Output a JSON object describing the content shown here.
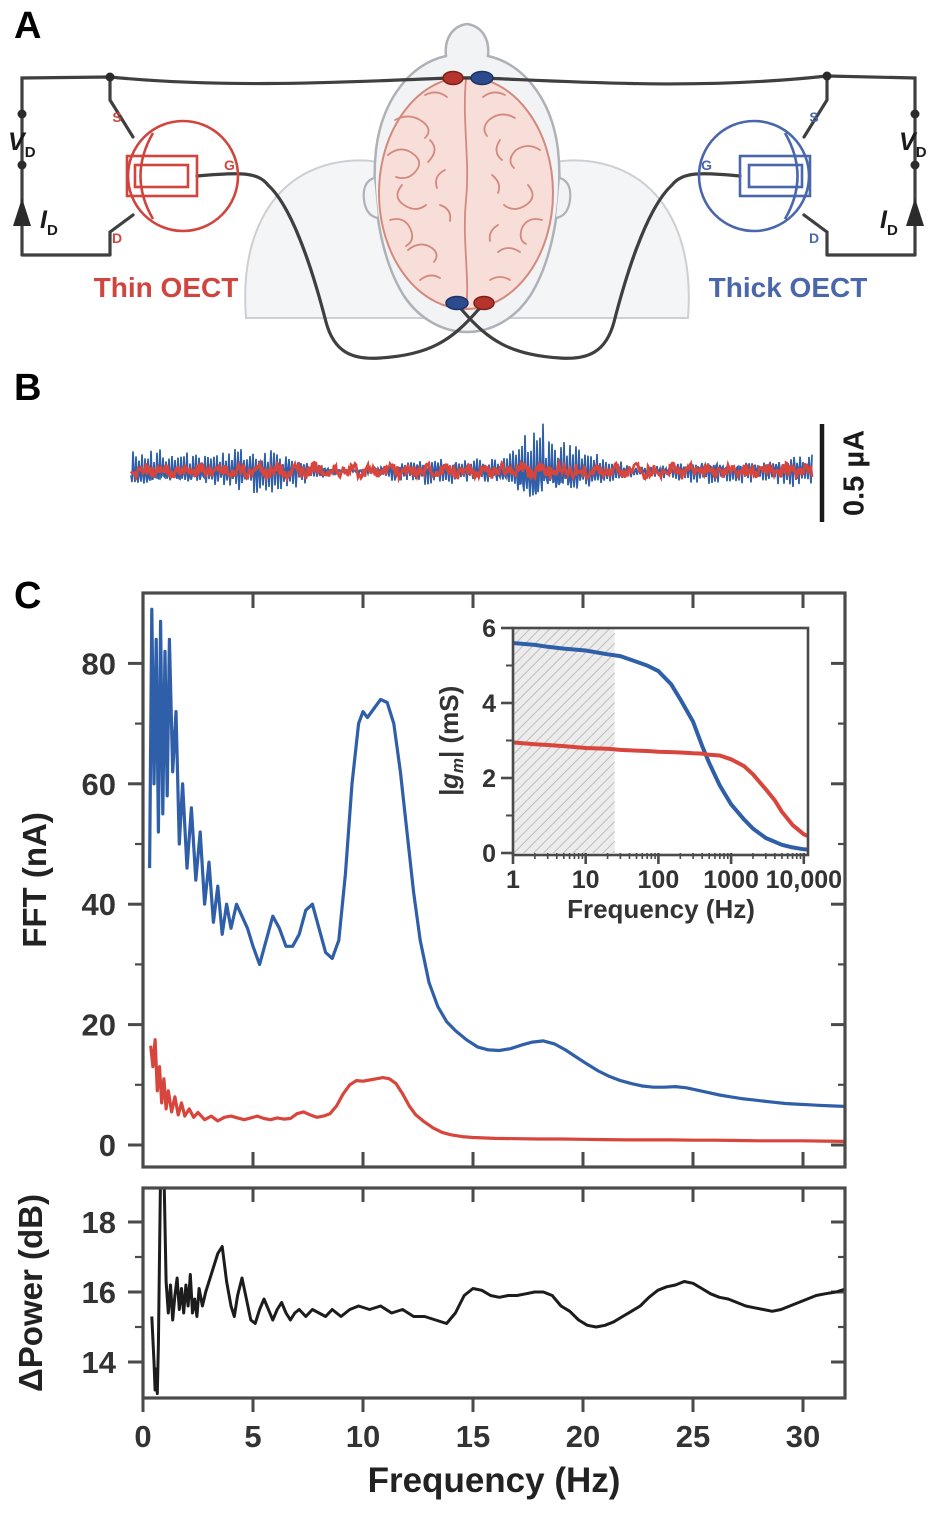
{
  "panel_a": {
    "label": "A",
    "v_symbol": "V",
    "v_sub": "D",
    "i_symbol": "I",
    "i_sub": "D",
    "source": "S",
    "gate": "G",
    "drain": "D",
    "thin_label": "Thin OECT",
    "thin_color": "#d0453e",
    "thick_label": "Thick OECT",
    "thick_color": "#4a67ab",
    "wire_color": "#3f3f3f",
    "electrode_red": "#b5342c",
    "electrode_blue": "#2c4b8e"
  },
  "panel_b": {
    "label": "B"
  },
  "panel_c": {
    "label": "C"
  },
  "chart_data": [
    {
      "id": "fft_spectrum",
      "type": "line",
      "xlabel": "Frequency (Hz)",
      "ylabel": "FFT (nA)",
      "xlim": [
        0,
        32
      ],
      "ylim": [
        -4,
        92
      ],
      "xticks": [
        5,
        10,
        15,
        20,
        25,
        30
      ],
      "yticks": [
        0,
        20,
        40,
        60,
        80
      ],
      "yticks_minor": [
        10,
        30,
        50,
        70
      ],
      "grid": false,
      "legend": "none",
      "series": [
        {
          "name": "Thick OECT",
          "color": "#2e5fa8",
          "x": [
            0.3,
            0.4,
            0.5,
            0.6,
            0.7,
            0.8,
            0.9,
            1.0,
            1.1,
            1.2,
            1.35,
            1.5,
            1.65,
            1.8,
            2.0,
            2.2,
            2.4,
            2.6,
            2.8,
            3.0,
            3.2,
            3.4,
            3.6,
            3.8,
            4.0,
            4.25,
            4.5,
            4.75,
            5.0,
            5.3,
            5.6,
            5.9,
            6.2,
            6.5,
            6.8,
            7.1,
            7.4,
            7.7,
            8.0,
            8.3,
            8.6,
            8.9,
            9.2,
            9.5,
            9.8,
            10.0,
            10.2,
            10.5,
            10.8,
            11.1,
            11.4,
            11.7,
            12.0,
            12.3,
            12.6,
            13.0,
            13.4,
            13.8,
            14.2,
            14.7,
            15.2,
            15.7,
            16.2,
            16.7,
            17.2,
            17.7,
            18.2,
            18.7,
            19.2,
            19.7,
            20.2,
            20.7,
            21.2,
            21.7,
            22.2,
            22.7,
            23.2,
            23.7,
            24.2,
            24.7,
            25.2,
            25.7,
            26.2,
            26.7,
            27.2,
            27.7,
            28.2,
            28.7,
            29.2,
            29.7,
            30.2,
            30.7,
            31.3,
            32.0
          ],
          "y": [
            46,
            89,
            60,
            84,
            52,
            87,
            55,
            82,
            58,
            84,
            62,
            72,
            50,
            60,
            46,
            56,
            44,
            52,
            40,
            47,
            37,
            43,
            35,
            40,
            36,
            40,
            38,
            36,
            33,
            30,
            34,
            38,
            36,
            33,
            33,
            35,
            39,
            40,
            36,
            32,
            31,
            34,
            45,
            60,
            70,
            72,
            71,
            72.5,
            74,
            73.5,
            70,
            62,
            52,
            42,
            34,
            27,
            23,
            20.5,
            19,
            17.5,
            16.3,
            15.8,
            15.7,
            16.0,
            16.6,
            17.1,
            17.3,
            16.8,
            15.8,
            14.6,
            13.4,
            12.3,
            11.4,
            10.7,
            10.2,
            9.8,
            9.6,
            9.6,
            9.7,
            9.5,
            9.1,
            8.7,
            8.3,
            8.0,
            7.7,
            7.5,
            7.3,
            7.1,
            6.9,
            6.8,
            6.7,
            6.6,
            6.5,
            6.4
          ]
        },
        {
          "name": "Thin OECT",
          "color": "#d8453c",
          "x": [
            0.35,
            0.45,
            0.55,
            0.65,
            0.75,
            0.85,
            0.95,
            1.05,
            1.15,
            1.3,
            1.45,
            1.6,
            1.75,
            1.9,
            2.1,
            2.3,
            2.5,
            2.8,
            3.1,
            3.4,
            3.7,
            4.0,
            4.3,
            4.6,
            4.9,
            5.2,
            5.5,
            5.8,
            6.1,
            6.4,
            6.7,
            7.0,
            7.3,
            7.6,
            7.9,
            8.2,
            8.5,
            8.8,
            9.1,
            9.4,
            9.7,
            10.0,
            10.3,
            10.6,
            10.9,
            11.2,
            11.5,
            11.8,
            12.1,
            12.4,
            12.8,
            13.2,
            13.6,
            14.0,
            14.5,
            15.0,
            16.0,
            17.0,
            18.0,
            19.0,
            20.0,
            21.0,
            22.0,
            23.0,
            24.0,
            25.0,
            26.0,
            27.0,
            28.0,
            29.0,
            30.0,
            31.0,
            32.0
          ],
          "y": [
            16.5,
            13.0,
            17.5,
            9.0,
            13.0,
            7.0,
            11.0,
            6.0,
            9.0,
            5.5,
            8.0,
            5.0,
            7.0,
            4.8,
            6.0,
            4.6,
            5.4,
            4.2,
            4.8,
            4.0,
            4.6,
            4.8,
            4.5,
            4.2,
            4.5,
            4.8,
            4.4,
            4.2,
            4.5,
            4.3,
            4.4,
            5.2,
            5.5,
            5.0,
            4.6,
            4.8,
            5.2,
            6.5,
            8.5,
            10.0,
            10.7,
            10.6,
            10.8,
            11.0,
            11.2,
            11.0,
            10.2,
            8.5,
            6.5,
            5.0,
            3.8,
            2.8,
            2.1,
            1.7,
            1.4,
            1.25,
            1.1,
            1.05,
            1.0,
            1.0,
            0.95,
            0.9,
            0.85,
            0.85,
            0.85,
            0.8,
            0.8,
            0.75,
            0.7,
            0.7,
            0.7,
            0.65,
            0.6
          ]
        }
      ]
    },
    {
      "id": "gm_bandwidth",
      "type": "line",
      "xscale": "log",
      "xlabel": "Frequency (Hz)",
      "ylabel_prefix": "|g",
      "ylabel_sub": "m",
      "ylabel_suffix": "| (mS)",
      "xlim": [
        1,
        15000
      ],
      "ylim": [
        0,
        6
      ],
      "xticks": [
        1,
        10,
        100,
        1000,
        10000
      ],
      "xtick_labels": [
        "1",
        "10",
        "100",
        "1000",
        "10,000"
      ],
      "yticks": [
        0,
        2,
        4,
        6
      ],
      "yticks_minor": [
        1,
        3,
        5
      ],
      "shaded_band_hz": [
        1,
        25
      ],
      "series": [
        {
          "name": "Thick OECT",
          "color": "#2e5fa8",
          "x": [
            1,
            2,
            3,
            5,
            10,
            20,
            30,
            50,
            70,
            100,
            150,
            200,
            300,
            400,
            500,
            700,
            1000,
            1500,
            2000,
            3000,
            5000,
            7000,
            10000,
            15000
          ],
          "y": [
            5.6,
            5.55,
            5.5,
            5.45,
            5.4,
            5.3,
            5.25,
            5.1,
            5.0,
            4.85,
            4.5,
            4.1,
            3.5,
            2.85,
            2.4,
            1.8,
            1.3,
            0.9,
            0.65,
            0.4,
            0.22,
            0.15,
            0.1,
            0.08
          ]
        },
        {
          "name": "Thin OECT",
          "color": "#d8453c",
          "x": [
            1,
            2,
            3,
            5,
            10,
            20,
            30,
            50,
            70,
            100,
            150,
            200,
            300,
            400,
            500,
            700,
            1000,
            1500,
            2000,
            3000,
            4000,
            5000,
            7000,
            10000,
            15000
          ],
          "y": [
            2.95,
            2.9,
            2.88,
            2.85,
            2.8,
            2.78,
            2.75,
            2.73,
            2.72,
            2.7,
            2.69,
            2.68,
            2.66,
            2.65,
            2.62,
            2.6,
            2.5,
            2.32,
            2.1,
            1.7,
            1.4,
            1.1,
            0.75,
            0.5,
            0.35
          ]
        }
      ]
    },
    {
      "id": "delta_power",
      "type": "line",
      "xlabel": "Frequency (Hz)",
      "ylabel": "ΔPower (dB)",
      "xlim": [
        0,
        32
      ],
      "ylim": [
        13,
        19
      ],
      "xticks": [
        0,
        5,
        10,
        15,
        20,
        25,
        30
      ],
      "yticks": [
        14,
        16,
        18
      ],
      "yticks_minor": [
        15,
        17
      ],
      "series": [
        {
          "name": "ΔPower",
          "color": "#1c1c1c",
          "x": [
            0.4,
            0.5,
            0.55,
            0.6,
            0.65,
            0.7,
            0.8,
            0.95,
            1.05,
            1.15,
            1.25,
            1.35,
            1.45,
            1.55,
            1.65,
            1.75,
            1.85,
            1.95,
            2.05,
            2.15,
            2.25,
            2.35,
            2.45,
            2.55,
            2.7,
            2.85,
            3.0,
            3.2,
            3.4,
            3.6,
            3.8,
            4.0,
            4.15,
            4.3,
            4.5,
            4.7,
            4.9,
            5.1,
            5.3,
            5.5,
            5.7,
            5.9,
            6.1,
            6.3,
            6.5,
            6.7,
            6.9,
            7.1,
            7.4,
            7.7,
            8.0,
            8.3,
            8.6,
            9.0,
            9.4,
            9.8,
            10.3,
            10.8,
            11.3,
            11.8,
            12.3,
            12.8,
            13.3,
            13.8,
            14.2,
            14.6,
            15.0,
            15.4,
            15.8,
            16.2,
            16.6,
            17.0,
            17.4,
            17.8,
            18.2,
            18.6,
            19.0,
            19.4,
            19.8,
            20.2,
            20.6,
            21.0,
            21.4,
            21.8,
            22.2,
            22.6,
            23.0,
            23.4,
            23.8,
            24.2,
            24.6,
            25.0,
            25.4,
            25.8,
            26.2,
            26.6,
            27.0,
            27.4,
            27.8,
            28.2,
            28.6,
            29.0,
            29.4,
            29.8,
            30.2,
            30.6,
            31.0,
            31.5,
            32.0
          ],
          "y": [
            15.3,
            14.0,
            13.2,
            13.8,
            13.1,
            14.5,
            19.5,
            19.5,
            16.3,
            15.4,
            16.2,
            15.2,
            15.9,
            16.4,
            15.5,
            16.1,
            15.4,
            16.2,
            15.6,
            16.5,
            15.4,
            15.8,
            15.3,
            16.1,
            15.6,
            16.0,
            16.3,
            16.7,
            17.1,
            17.3,
            16.3,
            15.6,
            15.3,
            15.9,
            16.4,
            15.8,
            15.2,
            15.1,
            15.5,
            15.8,
            15.5,
            15.2,
            15.5,
            15.7,
            15.4,
            15.2,
            15.4,
            15.5,
            15.3,
            15.5,
            15.4,
            15.3,
            15.5,
            15.3,
            15.5,
            15.6,
            15.5,
            15.6,
            15.4,
            15.5,
            15.3,
            15.3,
            15.2,
            15.1,
            15.4,
            15.9,
            16.1,
            16.05,
            15.9,
            15.85,
            15.9,
            15.9,
            15.95,
            16.0,
            16.0,
            15.9,
            15.6,
            15.45,
            15.2,
            15.05,
            15.0,
            15.05,
            15.15,
            15.3,
            15.45,
            15.6,
            15.85,
            16.05,
            16.15,
            16.2,
            16.3,
            16.25,
            16.1,
            15.95,
            15.85,
            15.8,
            15.7,
            15.6,
            15.55,
            15.5,
            15.45,
            15.5,
            15.6,
            15.7,
            15.8,
            15.9,
            15.95,
            16.0,
            16.1
          ]
        }
      ]
    },
    {
      "id": "time_traces",
      "type": "noise-trace",
      "scale_bar": "0.5 µA",
      "series": [
        {
          "name": "Thick OECT",
          "color": "#2e5fa8",
          "approx_peak_uA": 0.25
        },
        {
          "name": "Thin OECT",
          "color": "#d8453c",
          "approx_peak_uA": 0.04
        }
      ]
    }
  ]
}
